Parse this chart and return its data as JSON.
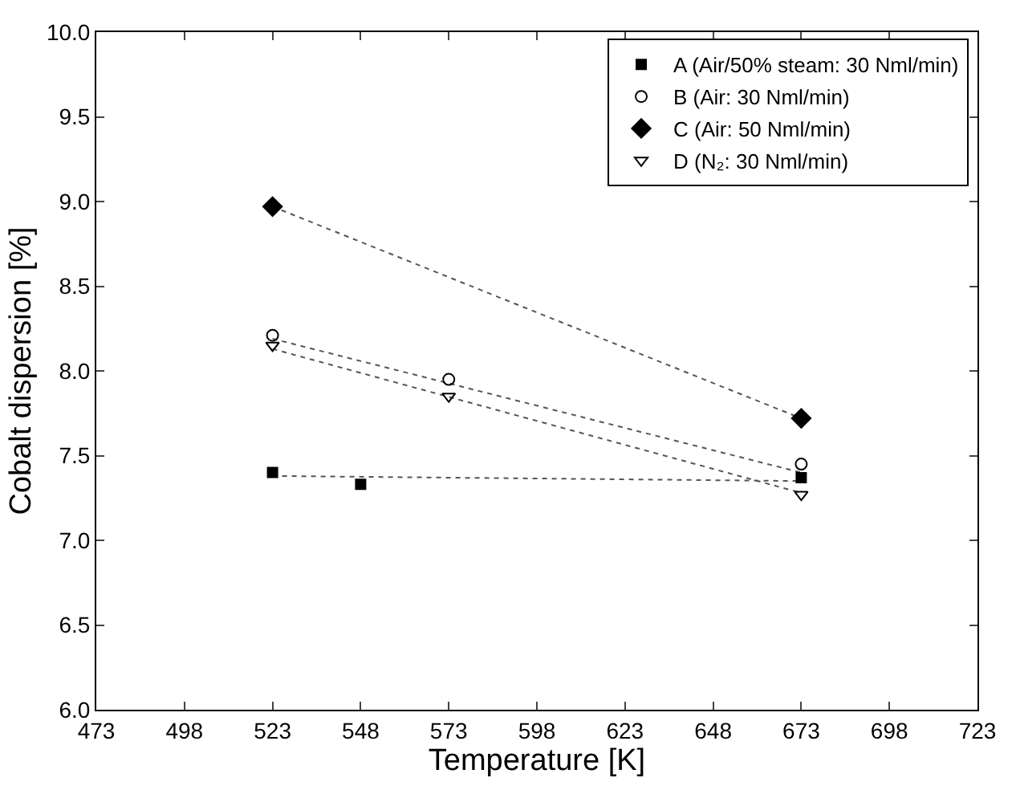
{
  "chart_data": {
    "type": "scatter",
    "xlabel": "Temperature [K]",
    "ylabel": "Cobalt dispersion [%]",
    "xlim": [
      473,
      723
    ],
    "xticks": [
      473,
      498,
      523,
      548,
      573,
      598,
      623,
      648,
      673,
      698,
      723
    ],
    "ylim": [
      6,
      10
    ],
    "yticks": [
      {
        "value": 6,
        "label": "6.0"
      },
      {
        "value": 6.5,
        "label": "6.5"
      },
      {
        "value": 7,
        "label": "7.0"
      },
      {
        "value": 7.5,
        "label": "7.5"
      },
      {
        "value": 8,
        "label": "8.0"
      },
      {
        "value": 8.5,
        "label": "8.5"
      },
      {
        "value": 9,
        "label": "9.0"
      },
      {
        "value": 9.5,
        "label": "9.5"
      },
      {
        "value": 10,
        "label": "10.0"
      }
    ],
    "grid": false,
    "legend": "top right",
    "series": [
      {
        "name": "A (Air/50% steam: 30 Nml/min)",
        "color": "#000000",
        "marker": "square",
        "x": [
          523,
          548,
          673
        ],
        "values": [
          7.4,
          7.33,
          7.37
        ]
      },
      {
        "name": "B (Air: 30 Nml/min)",
        "color": "#000000",
        "marker": "circle",
        "x": [
          523,
          573,
          673
        ],
        "values": [
          8.21,
          7.95,
          7.45
        ]
      },
      {
        "name": "C (Air: 50 Nml/min)",
        "color": "#000000",
        "marker": "diamond",
        "x": [
          523,
          673
        ],
        "values": [
          8.97,
          7.72
        ]
      },
      {
        "name": "D (N₂: 30 Nml/min)",
        "color": "#000000",
        "marker": "triangle",
        "x": [
          523,
          573,
          673
        ],
        "values": [
          8.15,
          7.85,
          7.27
        ]
      },
      {
        "type": "line",
        "color": "#555555",
        "line_style": "dotted",
        "marker": "none",
        "x": [
          523,
          673
        ],
        "values": [
          7.38,
          7.35
        ]
      },
      {
        "type": "line",
        "color": "#555555",
        "line_style": "dotted",
        "marker": "none",
        "x": [
          523,
          673
        ],
        "values": [
          8.19,
          7.4
        ]
      },
      {
        "type": "line",
        "color": "#555555",
        "line_style": "dotted",
        "marker": "none",
        "x": [
          523,
          673
        ],
        "values": [
          8.97,
          7.72
        ]
      },
      {
        "type": "line",
        "color": "#555555",
        "line_style": "dotted",
        "marker": "none",
        "x": [
          523,
          673
        ],
        "values": [
          8.13,
          7.28
        ]
      }
    ]
  }
}
